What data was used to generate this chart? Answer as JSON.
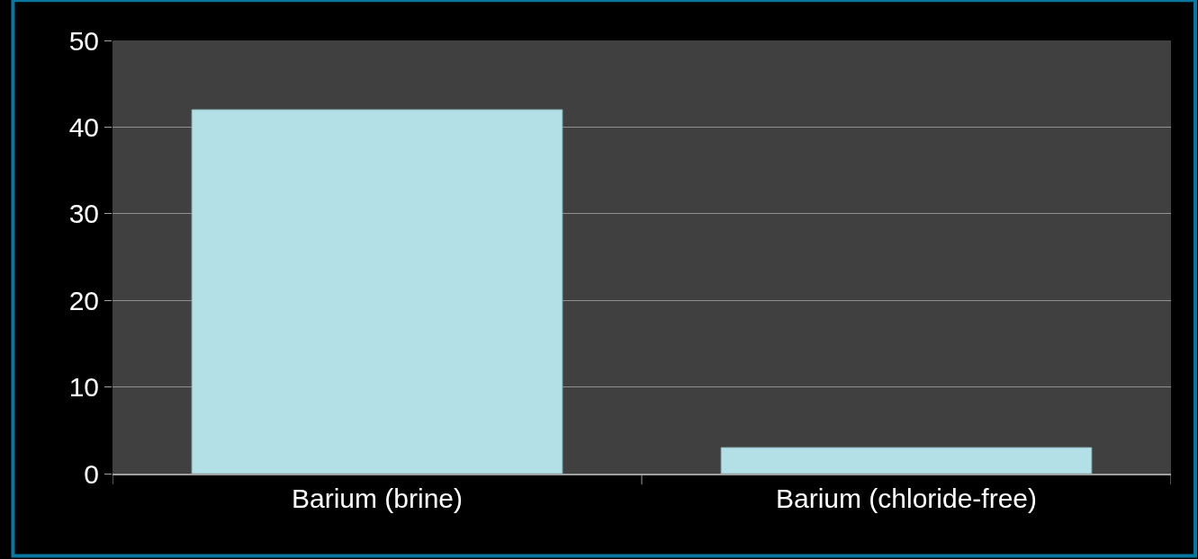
{
  "chart_data": {
    "type": "bar",
    "categories": [
      "Barium (brine)",
      "Barium (chloride-free)"
    ],
    "values": [
      42,
      3
    ],
    "color": "#b3e0e6",
    "ylim": [
      0,
      50
    ],
    "yticks": [
      0,
      10,
      20,
      30,
      40,
      50
    ],
    "grid": "y"
  }
}
